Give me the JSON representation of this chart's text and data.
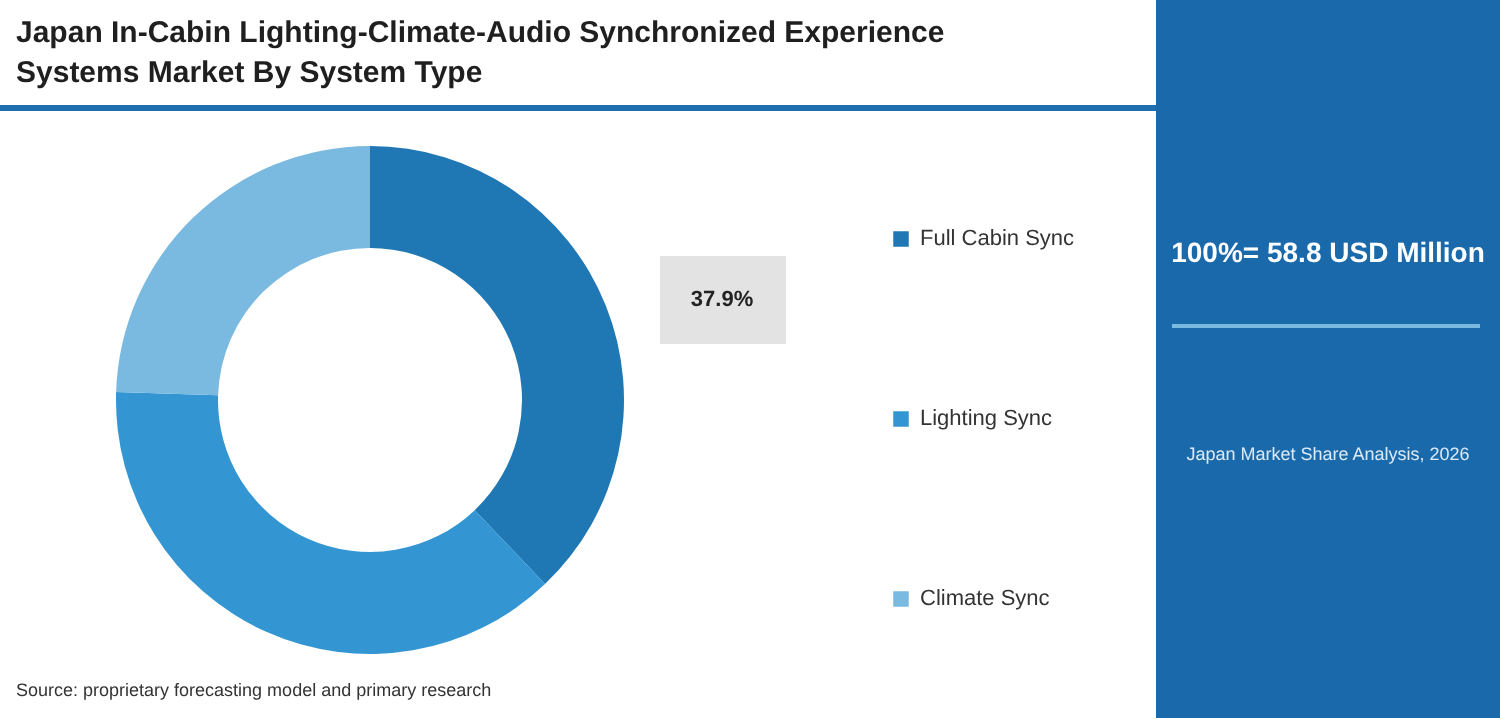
{
  "chart_data": {
    "type": "donut",
    "title": "Japan In-Cabin Lighting-Climate-Audio Synchronized Experience Systems Market By System Type",
    "categories": [
      "Full Cabin Sync",
      "Lighting Sync",
      "Climate Sync"
    ],
    "values": [
      37.9,
      37.6,
      24.5
    ],
    "colors": [
      "#1f77b4",
      "#3396d3",
      "#7ab9e0"
    ],
    "value_labels": [
      "37.9%",
      null,
      null
    ],
    "legend": "right",
    "annotations": [
      "100%= 58.8 USD Million",
      "Japan Market Share Analysis, 2026",
      "Source: proprietary forecasting model and primary research"
    ]
  }
}
